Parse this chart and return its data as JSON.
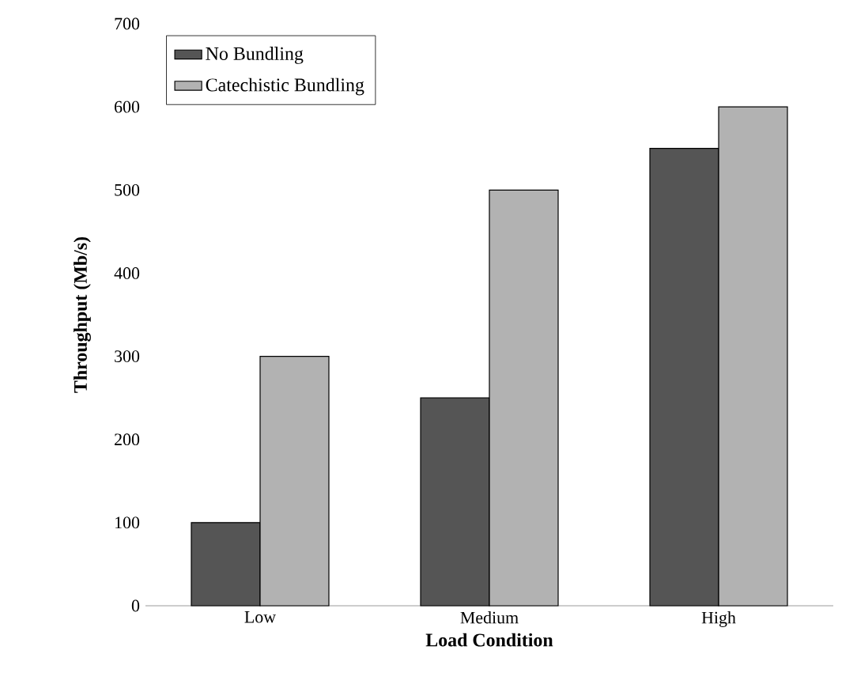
{
  "chart_data": {
    "type": "bar",
    "xlabel": "Load Condition",
    "ylabel": "Throughput (Mb/s)",
    "categories": [
      "Low",
      "Medium",
      "High"
    ],
    "series": [
      {
        "name": "No Bundling",
        "color": "#555555",
        "values": [
          100,
          250,
          550
        ]
      },
      {
        "name": "Catechistic Bundling",
        "color": "#b2b2b2",
        "values": [
          300,
          500,
          600
        ]
      }
    ],
    "ylim": [
      0,
      700
    ],
    "yticks": [
      0,
      100,
      200,
      300,
      400,
      500,
      600,
      700
    ],
    "legend": "top left"
  }
}
